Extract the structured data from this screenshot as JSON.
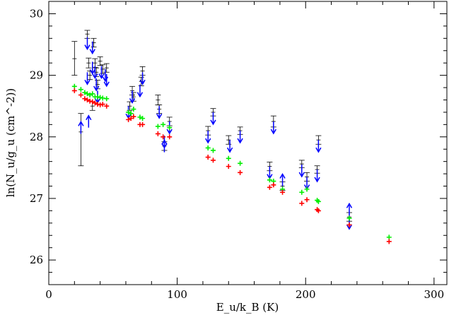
{
  "chart_data": {
    "type": "scatter",
    "title": "",
    "xlabel": "E_u/k_B (K)",
    "ylabel": "ln(N_u/g_u (cm^-2))",
    "xlim": [
      0,
      310
    ],
    "ylim": [
      25.6,
      30.2
    ],
    "xticks": [
      0,
      100,
      200,
      300
    ],
    "yticks": [
      26,
      27,
      28,
      29,
      30
    ],
    "grid": false,
    "legend": "none",
    "series": [
      {
        "marker": "errorbar",
        "color": "#000000",
        "points": [
          {
            "x": 20,
            "y": 29.27,
            "ylo": 29.0,
            "yhi": 29.55
          },
          {
            "x": 25,
            "y": 28.08,
            "ylo": 27.53,
            "yhi": 28.38
          },
          {
            "x": 30,
            "y": 29.67,
            "ylo": 29.6,
            "yhi": 29.73
          },
          {
            "x": 31,
            "y": 29.2,
            "ylo": 29.12,
            "yhi": 29.28
          },
          {
            "x": 32,
            "y": 29.0,
            "ylo": 28.93,
            "yhi": 29.07
          },
          {
            "x": 34,
            "y": 28.5,
            "ylo": 28.43,
            "yhi": 28.57
          },
          {
            "x": 35,
            "y": 29.53,
            "ylo": 29.46,
            "yhi": 29.6
          },
          {
            "x": 36,
            "y": 29.2,
            "ylo": 29.13,
            "yhi": 29.27
          },
          {
            "x": 37,
            "y": 29.05,
            "ylo": 28.98,
            "yhi": 29.12
          },
          {
            "x": 38,
            "y": 28.85,
            "ylo": 28.78,
            "yhi": 28.92
          },
          {
            "x": 40,
            "y": 29.23,
            "ylo": 29.16,
            "yhi": 29.3
          },
          {
            "x": 42,
            "y": 29.1,
            "ylo": 29.03,
            "yhi": 29.17
          },
          {
            "x": 45,
            "y": 29.12,
            "ylo": 29.05,
            "yhi": 29.19
          },
          {
            "x": 63,
            "y": 28.5,
            "ylo": 28.43,
            "yhi": 28.57
          },
          {
            "x": 65,
            "y": 28.75,
            "ylo": 28.68,
            "yhi": 28.82
          },
          {
            "x": 66,
            "y": 28.65,
            "ylo": 28.58,
            "yhi": 28.72
          },
          {
            "x": 72,
            "y": 28.9,
            "ylo": 28.83,
            "yhi": 28.97
          },
          {
            "x": 73,
            "y": 29.07,
            "ylo": 29.0,
            "yhi": 29.14
          },
          {
            "x": 85,
            "y": 28.6,
            "ylo": 28.52,
            "yhi": 28.68
          },
          {
            "x": 86,
            "y": 28.45,
            "ylo": 28.38,
            "yhi": 28.52
          },
          {
            "x": 90,
            "y": 27.85,
            "ylo": 27.78,
            "yhi": 27.92
          },
          {
            "x": 94,
            "y": 28.25,
            "ylo": 28.18,
            "yhi": 28.32
          },
          {
            "x": 124,
            "y": 28.1,
            "ylo": 28.03,
            "yhi": 28.17
          },
          {
            "x": 128,
            "y": 28.4,
            "ylo": 28.34,
            "yhi": 28.46
          },
          {
            "x": 140,
            "y": 27.95,
            "ylo": 27.88,
            "yhi": 28.02
          },
          {
            "x": 149,
            "y": 28.1,
            "ylo": 28.04,
            "yhi": 28.16
          },
          {
            "x": 172,
            "y": 27.52,
            "ylo": 27.45,
            "yhi": 27.59
          },
          {
            "x": 175,
            "y": 28.25,
            "ylo": 28.16,
            "yhi": 28.34
          },
          {
            "x": 182,
            "y": 27.2,
            "ylo": 27.13,
            "yhi": 27.27
          },
          {
            "x": 197,
            "y": 27.56,
            "ylo": 27.5,
            "yhi": 27.62
          },
          {
            "x": 201,
            "y": 27.35,
            "ylo": 27.28,
            "yhi": 27.42
          },
          {
            "x": 209,
            "y": 27.47,
            "ylo": 27.41,
            "yhi": 27.53
          },
          {
            "x": 210,
            "y": 27.95,
            "ylo": 27.88,
            "yhi": 28.02
          },
          {
            "x": 234,
            "y": 26.7,
            "ylo": 26.63,
            "yhi": 26.77
          }
        ]
      },
      {
        "marker": "arrow-down",
        "color": "#0000ff",
        "points": [
          {
            "x": 30,
            "y": 29.62
          },
          {
            "x": 30,
            "y": 29.05
          },
          {
            "x": 34,
            "y": 29.55
          },
          {
            "x": 34,
            "y": 29.22
          },
          {
            "x": 36,
            "y": 29.15
          },
          {
            "x": 37,
            "y": 28.95
          },
          {
            "x": 38,
            "y": 28.75
          },
          {
            "x": 41,
            "y": 29.15
          },
          {
            "x": 44,
            "y": 29.1
          },
          {
            "x": 45,
            "y": 29.02
          },
          {
            "x": 62,
            "y": 28.5
          },
          {
            "x": 65,
            "y": 28.75
          },
          {
            "x": 71,
            "y": 28.85
          },
          {
            "x": 73,
            "y": 29.05
          },
          {
            "x": 86,
            "y": 28.5
          },
          {
            "x": 90,
            "y": 28.02
          },
          {
            "x": 94,
            "y": 28.25
          },
          {
            "x": 124,
            "y": 28.1
          },
          {
            "x": 128,
            "y": 28.4
          },
          {
            "x": 141,
            "y": 27.95
          },
          {
            "x": 149,
            "y": 28.1
          },
          {
            "x": 172,
            "y": 27.52
          },
          {
            "x": 175,
            "y": 28.25
          },
          {
            "x": 197,
            "y": 27.55
          },
          {
            "x": 201,
            "y": 27.35
          },
          {
            "x": 209,
            "y": 27.47
          },
          {
            "x": 210,
            "y": 27.95
          },
          {
            "x": 234,
            "y": 26.7
          }
        ]
      },
      {
        "marker": "arrow-up",
        "color": "#0000ff",
        "points": [
          {
            "x": 25,
            "y": 28.05
          },
          {
            "x": 31,
            "y": 28.15
          },
          {
            "x": 90,
            "y": 27.75
          },
          {
            "x": 182,
            "y": 27.2
          },
          {
            "x": 234,
            "y": 26.72
          }
        ]
      },
      {
        "marker": "plus",
        "color": "#00ee00",
        "points": [
          {
            "x": 20,
            "y": 28.82
          },
          {
            "x": 25,
            "y": 28.77
          },
          {
            "x": 28,
            "y": 28.72
          },
          {
            "x": 30,
            "y": 28.7
          },
          {
            "x": 32,
            "y": 28.68
          },
          {
            "x": 34,
            "y": 28.7
          },
          {
            "x": 36,
            "y": 28.65
          },
          {
            "x": 38,
            "y": 28.65
          },
          {
            "x": 40,
            "y": 28.64
          },
          {
            "x": 42,
            "y": 28.63
          },
          {
            "x": 45,
            "y": 28.62
          },
          {
            "x": 62,
            "y": 28.4
          },
          {
            "x": 64,
            "y": 28.38
          },
          {
            "x": 66,
            "y": 28.45
          },
          {
            "x": 71,
            "y": 28.32
          },
          {
            "x": 73,
            "y": 28.3
          },
          {
            "x": 85,
            "y": 28.17
          },
          {
            "x": 89,
            "y": 28.2
          },
          {
            "x": 94,
            "y": 28.15
          },
          {
            "x": 124,
            "y": 27.82
          },
          {
            "x": 128,
            "y": 27.78
          },
          {
            "x": 140,
            "y": 27.65
          },
          {
            "x": 149,
            "y": 27.57
          },
          {
            "x": 172,
            "y": 27.3
          },
          {
            "x": 175,
            "y": 27.28
          },
          {
            "x": 182,
            "y": 27.15
          },
          {
            "x": 197,
            "y": 27.1
          },
          {
            "x": 201,
            "y": 27.15
          },
          {
            "x": 209,
            "y": 26.97
          },
          {
            "x": 210,
            "y": 26.95
          },
          {
            "x": 234,
            "y": 26.68
          },
          {
            "x": 265,
            "y": 26.37
          }
        ]
      },
      {
        "marker": "plus",
        "color": "#ff0000",
        "points": [
          {
            "x": 20,
            "y": 28.75
          },
          {
            "x": 25,
            "y": 28.68
          },
          {
            "x": 28,
            "y": 28.62
          },
          {
            "x": 30,
            "y": 28.6
          },
          {
            "x": 32,
            "y": 28.58
          },
          {
            "x": 34,
            "y": 28.57
          },
          {
            "x": 36,
            "y": 28.55
          },
          {
            "x": 38,
            "y": 28.53
          },
          {
            "x": 40,
            "y": 28.52
          },
          {
            "x": 42,
            "y": 28.53
          },
          {
            "x": 45,
            "y": 28.5
          },
          {
            "x": 62,
            "y": 28.28
          },
          {
            "x": 64,
            "y": 28.3
          },
          {
            "x": 66,
            "y": 28.33
          },
          {
            "x": 71,
            "y": 28.2
          },
          {
            "x": 73,
            "y": 28.2
          },
          {
            "x": 85,
            "y": 28.05
          },
          {
            "x": 89,
            "y": 28.0
          },
          {
            "x": 94,
            "y": 28.0
          },
          {
            "x": 124,
            "y": 27.67
          },
          {
            "x": 128,
            "y": 27.62
          },
          {
            "x": 140,
            "y": 27.52
          },
          {
            "x": 149,
            "y": 27.42
          },
          {
            "x": 172,
            "y": 27.18
          },
          {
            "x": 175,
            "y": 27.22
          },
          {
            "x": 182,
            "y": 27.1
          },
          {
            "x": 197,
            "y": 26.92
          },
          {
            "x": 201,
            "y": 26.98
          },
          {
            "x": 209,
            "y": 26.82
          },
          {
            "x": 210,
            "y": 26.8
          },
          {
            "x": 234,
            "y": 26.57
          },
          {
            "x": 265,
            "y": 26.3
          }
        ]
      }
    ]
  }
}
